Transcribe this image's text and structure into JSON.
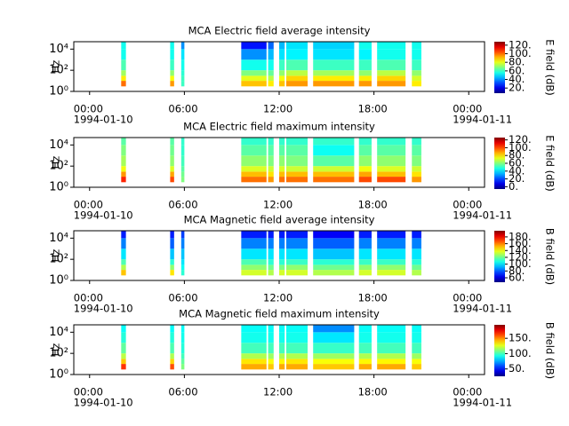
{
  "chart_data": [
    {
      "type": "heatmap",
      "title": "MCA  Electric field average intensity",
      "ylabel": "Hz",
      "clabel": "E field (dB)",
      "log_y": true,
      "colormap": "jet",
      "xlim": [
        -1,
        25
      ],
      "xticks": [
        {
          "value": 0,
          "label": "00:00"
        },
        {
          "value": 6,
          "label": "06:00"
        },
        {
          "value": 12,
          "label": "12:00"
        },
        {
          "value": 18,
          "label": "18:00"
        },
        {
          "value": 24,
          "label": "00:00"
        }
      ],
      "xdate_labels": [
        {
          "value": 0,
          "label": "1994-01-10"
        },
        {
          "value": 24,
          "label": "1994-01-11"
        }
      ],
      "ylim": [
        1,
        50000
      ],
      "yticks": [
        {
          "value": 1,
          "label": "10⁰"
        },
        {
          "value": 100,
          "label": "10²"
        },
        {
          "value": 10000,
          "label": "10⁴"
        }
      ],
      "y_edges": [
        3,
        10,
        30,
        100,
        1000,
        10000,
        50000
      ],
      "clim": [
        8,
        128
      ],
      "cticks": [
        {
          "value": 20,
          "label": "20."
        },
        {
          "value": 40,
          "label": "40."
        },
        {
          "value": 60,
          "label": "60."
        },
        {
          "value": 80,
          "label": "80."
        },
        {
          "value": 100,
          "label": "100."
        },
        {
          "value": 120,
          "label": "120."
        }
      ],
      "segments": [
        {
          "start": 2.0,
          "end": 2.3,
          "values": [
            100,
            85,
            72,
            62,
            55,
            55
          ]
        },
        {
          "start": 5.1,
          "end": 5.35,
          "values": [
            95,
            82,
            70,
            60,
            55,
            55
          ]
        },
        {
          "start": 5.8,
          "end": 6.0,
          "values": [
            60,
            60,
            58,
            55,
            50,
            40
          ]
        },
        {
          "start": 9.6,
          "end": 11.2,
          "values": [
            90,
            80,
            68,
            55,
            40,
            25
          ]
        },
        {
          "start": 11.3,
          "end": 11.65,
          "values": [
            85,
            75,
            65,
            55,
            45,
            35
          ]
        },
        {
          "start": 12.0,
          "end": 12.35,
          "values": [
            90,
            82,
            70,
            60,
            50,
            45
          ]
        },
        {
          "start": 12.45,
          "end": 13.8,
          "values": [
            95,
            88,
            75,
            62,
            52,
            50
          ]
        },
        {
          "start": 14.15,
          "end": 16.75,
          "values": [
            95,
            85,
            72,
            60,
            50,
            48
          ]
        },
        {
          "start": 17.05,
          "end": 17.85,
          "values": [
            95,
            85,
            70,
            60,
            52,
            55
          ]
        },
        {
          "start": 18.2,
          "end": 20.0,
          "values": [
            95,
            88,
            75,
            62,
            55,
            55
          ]
        },
        {
          "start": 20.4,
          "end": 21.0,
          "values": [
            85,
            78,
            70,
            60,
            55,
            55
          ]
        }
      ]
    },
    {
      "type": "heatmap",
      "title": "MCA  Electric field maximum intensity",
      "ylabel": "Hz",
      "clabel": "E field (dB)",
      "log_y": true,
      "colormap": "jet",
      "xlim": [
        -1,
        25
      ],
      "xticks": [
        {
          "value": 0,
          "label": "00:00"
        },
        {
          "value": 6,
          "label": "06:00"
        },
        {
          "value": 12,
          "label": "12:00"
        },
        {
          "value": 18,
          "label": "18:00"
        },
        {
          "value": 24,
          "label": "00:00"
        }
      ],
      "xdate_labels": [
        {
          "value": 0,
          "label": "1994-01-10"
        },
        {
          "value": 24,
          "label": "1994-01-11"
        }
      ],
      "ylim": [
        1,
        50000
      ],
      "yticks": [
        {
          "value": 1,
          "label": "10⁰"
        },
        {
          "value": 100,
          "label": "10²"
        },
        {
          "value": 10000,
          "label": "10⁴"
        }
      ],
      "y_edges": [
        3,
        10,
        30,
        100,
        1000,
        10000,
        50000
      ],
      "clim": [
        -6,
        126
      ],
      "cticks": [
        {
          "value": 0,
          "label": "0."
        },
        {
          "value": 20,
          "label": "20."
        },
        {
          "value": 40,
          "label": "40."
        },
        {
          "value": 60,
          "label": "60."
        },
        {
          "value": 80,
          "label": "80."
        },
        {
          "value": 100,
          "label": "100."
        },
        {
          "value": 120,
          "label": "120."
        }
      ],
      "segments": [
        {
          "start": 2.0,
          "end": 2.3,
          "values": [
            105,
            90,
            75,
            65,
            60,
            55
          ]
        },
        {
          "start": 5.1,
          "end": 5.35,
          "values": [
            100,
            88,
            72,
            62,
            58,
            55
          ]
        },
        {
          "start": 5.8,
          "end": 6.0,
          "values": [
            60,
            58,
            55,
            52,
            50,
            50
          ]
        },
        {
          "start": 9.6,
          "end": 11.2,
          "values": [
            95,
            85,
            72,
            62,
            55,
            50
          ]
        },
        {
          "start": 11.3,
          "end": 11.65,
          "values": [
            90,
            80,
            70,
            60,
            55,
            50
          ]
        },
        {
          "start": 12.0,
          "end": 12.35,
          "values": [
            95,
            85,
            72,
            62,
            55,
            50
          ]
        },
        {
          "start": 12.45,
          "end": 13.8,
          "values": [
            95,
            85,
            70,
            60,
            55,
            50
          ]
        },
        {
          "start": 14.15,
          "end": 16.75,
          "values": [
            95,
            85,
            70,
            55,
            45,
            50
          ]
        },
        {
          "start": 17.05,
          "end": 17.85,
          "values": [
            100,
            88,
            75,
            62,
            55,
            50
          ]
        },
        {
          "start": 18.2,
          "end": 20.0,
          "values": [
            100,
            85,
            72,
            62,
            55,
            50
          ]
        },
        {
          "start": 20.4,
          "end": 21.0,
          "values": [
            90,
            80,
            70,
            60,
            55,
            50
          ]
        }
      ]
    },
    {
      "type": "heatmap",
      "title": "MCA  Magnetic field average intensity",
      "ylabel": "Hz",
      "clabel": "B field (dB)",
      "log_y": true,
      "colormap": "jet",
      "xlim": [
        -1,
        25
      ],
      "xticks": [
        {
          "value": 0,
          "label": "00:00"
        },
        {
          "value": 6,
          "label": "06:00"
        },
        {
          "value": 12,
          "label": "12:00"
        },
        {
          "value": 18,
          "label": "18:00"
        },
        {
          "value": 24,
          "label": "00:00"
        }
      ],
      "xdate_labels": [
        {
          "value": 0,
          "label": "1994-01-10"
        },
        {
          "value": 24,
          "label": "1994-01-11"
        }
      ],
      "ylim": [
        1,
        50000
      ],
      "yticks": [
        {
          "value": 1,
          "label": "10⁰"
        },
        {
          "value": 100,
          "label": "10²"
        },
        {
          "value": 10000,
          "label": "10⁴"
        }
      ],
      "y_edges": [
        3,
        10,
        30,
        100,
        1000,
        10000,
        50000
      ],
      "clim": [
        47,
        198
      ],
      "cticks": [
        {
          "value": 60,
          "label": "60."
        },
        {
          "value": 80,
          "label": "80."
        },
        {
          "value": 100,
          "label": "100."
        },
        {
          "value": 120,
          "label": "120."
        },
        {
          "value": 140,
          "label": "140."
        },
        {
          "value": 160,
          "label": "160."
        },
        {
          "value": 180,
          "label": "180."
        }
      ],
      "segments": [
        {
          "start": 2.0,
          "end": 2.3,
          "values": [
            150,
            130,
            115,
            100,
            85,
            70
          ]
        },
        {
          "start": 5.1,
          "end": 5.35,
          "values": [
            145,
            125,
            110,
            95,
            80,
            70
          ]
        },
        {
          "start": 5.8,
          "end": 6.0,
          "values": [
            110,
            105,
            100,
            95,
            85,
            75
          ]
        },
        {
          "start": 9.6,
          "end": 11.2,
          "values": [
            135,
            125,
            115,
            100,
            85,
            70
          ]
        },
        {
          "start": 11.3,
          "end": 11.65,
          "values": [
            130,
            120,
            110,
            100,
            85,
            70
          ]
        },
        {
          "start": 12.0,
          "end": 12.35,
          "values": [
            135,
            122,
            110,
            100,
            85,
            70
          ]
        },
        {
          "start": 12.45,
          "end": 13.8,
          "values": [
            135,
            125,
            112,
            100,
            85,
            70
          ]
        },
        {
          "start": 14.15,
          "end": 16.75,
          "values": [
            130,
            120,
            110,
            95,
            80,
            65
          ]
        },
        {
          "start": 17.05,
          "end": 17.85,
          "values": [
            135,
            125,
            112,
            100,
            85,
            70
          ]
        },
        {
          "start": 18.2,
          "end": 20.0,
          "values": [
            135,
            125,
            112,
            100,
            85,
            70
          ]
        },
        {
          "start": 20.4,
          "end": 21.0,
          "values": [
            130,
            120,
            110,
            100,
            85,
            70
          ]
        }
      ]
    },
    {
      "type": "heatmap",
      "title": "MCA  Magnetic field maximum intensity",
      "ylabel": "Hz",
      "clabel": "B field (dB)",
      "log_y": true,
      "colormap": "jet",
      "xlim": [
        -1,
        25
      ],
      "xticks": [
        {
          "value": 0,
          "label": "00:00"
        },
        {
          "value": 6,
          "label": "06:00"
        },
        {
          "value": 12,
          "label": "12:00"
        },
        {
          "value": 18,
          "label": "18:00"
        },
        {
          "value": 24,
          "label": "00:00"
        }
      ],
      "xdate_labels": [
        {
          "value": 0,
          "label": "1994-01-10"
        },
        {
          "value": 24,
          "label": "1994-01-11"
        }
      ],
      "ylim": [
        1,
        50000
      ],
      "yticks": [
        {
          "value": 1,
          "label": "10⁰"
        },
        {
          "value": 100,
          "label": "10²"
        },
        {
          "value": 10000,
          "label": "10⁴"
        }
      ],
      "y_edges": [
        3,
        10,
        30,
        100,
        1000,
        10000,
        50000
      ],
      "clim": [
        26,
        194
      ],
      "cticks": [
        {
          "value": 50,
          "label": "50."
        },
        {
          "value": 100,
          "label": "100."
        },
        {
          "value": 150,
          "label": "150."
        }
      ],
      "segments": [
        {
          "start": 2.0,
          "end": 2.3,
          "values": [
            165,
            140,
            120,
            105,
            95,
            90
          ]
        },
        {
          "start": 5.1,
          "end": 5.35,
          "values": [
            160,
            138,
            118,
            102,
            95,
            90
          ]
        },
        {
          "start": 5.8,
          "end": 6.0,
          "values": [
            110,
            105,
            100,
            95,
            92,
            90
          ]
        },
        {
          "start": 9.6,
          "end": 11.2,
          "values": [
            145,
            135,
            118,
            100,
            92,
            90
          ]
        },
        {
          "start": 11.3,
          "end": 11.65,
          "values": [
            140,
            130,
            115,
            100,
            92,
            90
          ]
        },
        {
          "start": 12.0,
          "end": 12.35,
          "values": [
            145,
            132,
            118,
            100,
            92,
            90
          ]
        },
        {
          "start": 12.45,
          "end": 13.8,
          "values": [
            145,
            135,
            118,
            100,
            92,
            90
          ]
        },
        {
          "start": 14.15,
          "end": 16.75,
          "values": [
            140,
            130,
            115,
            98,
            85,
            70
          ]
        },
        {
          "start": 17.05,
          "end": 17.85,
          "values": [
            145,
            132,
            118,
            100,
            92,
            90
          ]
        },
        {
          "start": 18.2,
          "end": 20.0,
          "values": [
            145,
            132,
            118,
            100,
            92,
            90
          ]
        },
        {
          "start": 20.4,
          "end": 21.0,
          "values": [
            140,
            130,
            115,
            100,
            92,
            90
          ]
        }
      ]
    }
  ]
}
